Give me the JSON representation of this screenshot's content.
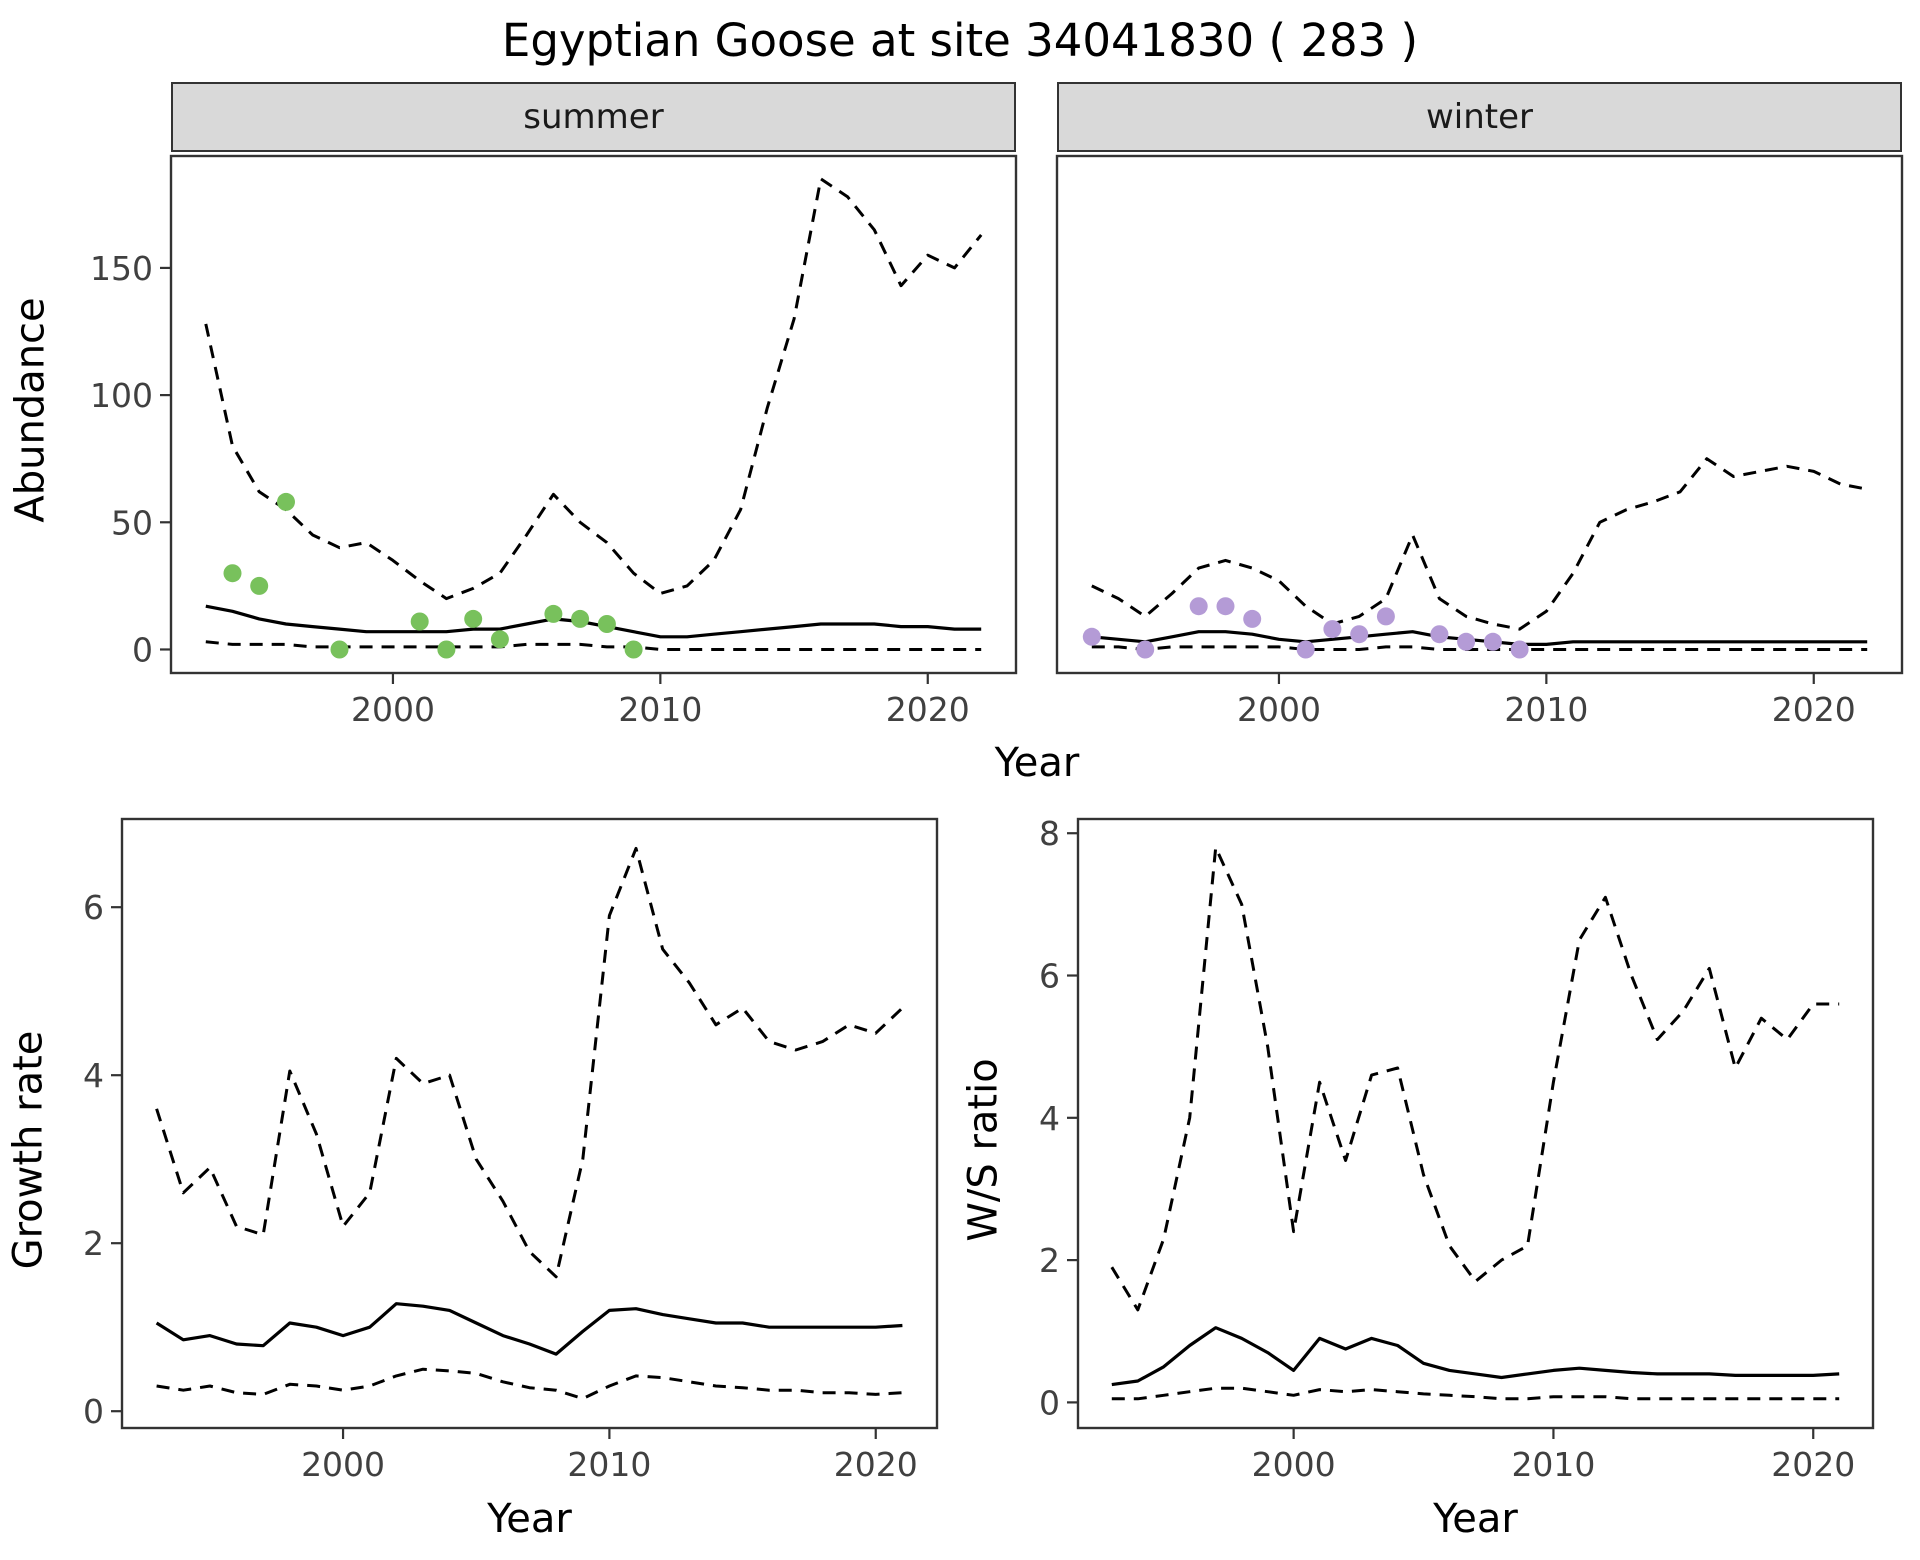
{
  "page": {
    "title": "Egyptian Goose at site 34041830 ( 283 )"
  },
  "labels": {
    "year": "Year",
    "abundance": "Abundance",
    "growth_rate": "Growth rate",
    "ws_ratio": "W/S ratio",
    "summer": "summer",
    "winter": "winter"
  },
  "colors": {
    "summer_points": "#78c15c",
    "winter_points": "#b49bd6",
    "line": "#000000",
    "strip_background": "#d9d9d9"
  },
  "chart_data": [
    {
      "id": "abundance-summer",
      "type": "line",
      "facet_label": "summer",
      "title": "",
      "xlabel": "Year",
      "ylabel": "Abundance",
      "xlim": [
        1991.7,
        2023.3
      ],
      "ylim": [
        -9.25,
        194
      ],
      "xticks": [
        2000,
        2010,
        2020
      ],
      "yticks": [
        0,
        50,
        100,
        150
      ],
      "show_y_labels": true,
      "grid": false,
      "legend": "none",
      "x": [
        1993,
        1994,
        1995,
        1996,
        1997,
        1998,
        1999,
        2000,
        2001,
        2002,
        2003,
        2004,
        2005,
        2006,
        2007,
        2008,
        2009,
        2010,
        2011,
        2012,
        2013,
        2014,
        2015,
        2016,
        2017,
        2018,
        2019,
        2020,
        2021,
        2022
      ],
      "series": [
        {
          "name": "upper-ci",
          "style": "dashed",
          "values": [
            128,
            80,
            62,
            55,
            45,
            40,
            42,
            35,
            27,
            20,
            24,
            30,
            45,
            61,
            50,
            42,
            30,
            22,
            25,
            35,
            55,
            95,
            130,
            185,
            178,
            165,
            143,
            155,
            150,
            163
          ]
        },
        {
          "name": "fitted",
          "style": "solid",
          "values": [
            17,
            15,
            12,
            10,
            9,
            8,
            7,
            7,
            7,
            7,
            8,
            8,
            10,
            12,
            11,
            9,
            7,
            5,
            5,
            6,
            7,
            8,
            9,
            10,
            10,
            10,
            9,
            9,
            8,
            8
          ]
        },
        {
          "name": "lower-ci",
          "style": "dashed",
          "values": [
            3,
            2,
            2,
            2,
            1,
            1,
            1,
            1,
            1,
            1,
            1,
            1,
            2,
            2,
            2,
            1,
            1,
            0,
            0,
            0,
            0,
            0,
            0,
            0,
            0,
            0,
            0,
            0,
            0,
            0
          ]
        }
      ],
      "points": {
        "name": "observed-counts",
        "color": "#78c15c",
        "x": [
          1994,
          1995,
          1996,
          1998,
          2001,
          2002,
          2003,
          2004,
          2006,
          2007,
          2008,
          2009
        ],
        "y": [
          30,
          25,
          58,
          0,
          11,
          0,
          12,
          4,
          14,
          12,
          10,
          0
        ]
      }
    },
    {
      "id": "abundance-winter",
      "type": "line",
      "facet_label": "winter",
      "title": "",
      "xlabel": "Year",
      "ylabel": "Abundance",
      "xlim": [
        1991.7,
        2023.3
      ],
      "ylim": [
        -9.25,
        194
      ],
      "xticks": [
        2000,
        2010,
        2020
      ],
      "yticks": [
        0,
        50,
        100,
        150
      ],
      "show_y_labels": false,
      "grid": false,
      "legend": "none",
      "x": [
        1993,
        1994,
        1995,
        1996,
        1997,
        1998,
        1999,
        2000,
        2001,
        2002,
        2003,
        2004,
        2005,
        2006,
        2007,
        2008,
        2009,
        2010,
        2011,
        2012,
        2013,
        2014,
        2015,
        2016,
        2017,
        2018,
        2019,
        2020,
        2021,
        2022
      ],
      "series": [
        {
          "name": "upper-ci",
          "style": "dashed",
          "values": [
            25,
            20,
            13,
            22,
            32,
            35,
            32,
            27,
            17,
            10,
            13,
            20,
            45,
            20,
            13,
            10,
            8,
            15,
            30,
            50,
            55,
            58,
            62,
            75,
            68,
            70,
            72,
            70,
            65,
            63
          ]
        },
        {
          "name": "fitted",
          "style": "solid",
          "values": [
            5,
            4,
            3,
            5,
            7,
            7,
            6,
            4,
            3,
            4,
            5,
            6,
            7,
            5,
            4,
            3,
            2,
            2,
            3,
            3,
            3,
            3,
            3,
            3,
            3,
            3,
            3,
            3,
            3,
            3
          ]
        },
        {
          "name": "lower-ci",
          "style": "dashed",
          "values": [
            1,
            1,
            0,
            1,
            1,
            1,
            1,
            1,
            0,
            0,
            0,
            1,
            1,
            0,
            0,
            0,
            0,
            0,
            0,
            0,
            0,
            0,
            0,
            0,
            0,
            0,
            0,
            0,
            0,
            0
          ]
        }
      ],
      "points": {
        "name": "observed-counts",
        "color": "#b49bd6",
        "x": [
          1993,
          1995,
          1997,
          1998,
          1999,
          2001,
          2002,
          2003,
          2004,
          2006,
          2007,
          2008,
          2009
        ],
        "y": [
          5,
          0,
          17,
          17,
          12,
          0,
          8,
          6,
          13,
          6,
          3,
          3,
          0
        ]
      }
    },
    {
      "id": "growth-rate",
      "type": "line",
      "facet_label": "",
      "title": "",
      "xlabel": "Year",
      "ylabel": "Growth rate",
      "xlim": [
        1991.7,
        2022.3
      ],
      "ylim": [
        -0.2,
        7.05
      ],
      "xticks": [
        2000,
        2010,
        2020
      ],
      "yticks": [
        0,
        2,
        4,
        6
      ],
      "show_y_labels": true,
      "grid": false,
      "legend": "none",
      "x": [
        1993,
        1994,
        1995,
        1996,
        1997,
        1998,
        1999,
        2000,
        2001,
        2002,
        2003,
        2004,
        2005,
        2006,
        2007,
        2008,
        2009,
        2010,
        2011,
        2012,
        2013,
        2014,
        2015,
        2016,
        2017,
        2018,
        2019,
        2020,
        2021
      ],
      "series": [
        {
          "name": "upper-ci",
          "style": "dashed",
          "values": [
            3.6,
            2.6,
            2.9,
            2.2,
            2.1,
            4.05,
            3.3,
            2.2,
            2.6,
            4.2,
            3.9,
            4.0,
            3.0,
            2.5,
            1.9,
            1.6,
            3.0,
            5.9,
            6.7,
            5.5,
            5.1,
            4.6,
            4.8,
            4.4,
            4.3,
            4.4,
            4.6,
            4.5,
            4.8
          ]
        },
        {
          "name": "fitted",
          "style": "solid",
          "values": [
            1.05,
            0.85,
            0.9,
            0.8,
            0.78,
            1.05,
            1.0,
            0.9,
            1.0,
            1.28,
            1.25,
            1.2,
            1.05,
            0.9,
            0.8,
            0.68,
            0.95,
            1.2,
            1.22,
            1.15,
            1.1,
            1.05,
            1.05,
            1.0,
            1.0,
            1.0,
            1.0,
            1.0,
            1.02
          ]
        },
        {
          "name": "lower-ci",
          "style": "dashed",
          "values": [
            0.3,
            0.25,
            0.3,
            0.22,
            0.2,
            0.32,
            0.3,
            0.25,
            0.3,
            0.42,
            0.5,
            0.48,
            0.45,
            0.35,
            0.28,
            0.25,
            0.15,
            0.3,
            0.42,
            0.4,
            0.35,
            0.3,
            0.28,
            0.25,
            0.25,
            0.22,
            0.22,
            0.2,
            0.22
          ]
        }
      ],
      "points": null
    },
    {
      "id": "ws-ratio",
      "type": "line",
      "facet_label": "",
      "title": "",
      "xlabel": "Year",
      "ylabel": "W/S ratio",
      "xlim": [
        1991.7,
        2022.3
      ],
      "ylim": [
        -0.36,
        8.2
      ],
      "xticks": [
        2000,
        2010,
        2020
      ],
      "yticks": [
        0,
        2,
        4,
        6,
        8
      ],
      "show_y_labels": true,
      "grid": false,
      "legend": "none",
      "x": [
        1993,
        1994,
        1995,
        1996,
        1997,
        1998,
        1999,
        2000,
        2001,
        2002,
        2003,
        2004,
        2005,
        2006,
        2007,
        2008,
        2009,
        2010,
        2011,
        2012,
        2013,
        2014,
        2015,
        2016,
        2017,
        2018,
        2019,
        2020,
        2021
      ],
      "series": [
        {
          "name": "upper-ci",
          "style": "dashed",
          "values": [
            1.9,
            1.3,
            2.3,
            4.0,
            7.8,
            7.0,
            5.0,
            2.4,
            4.5,
            3.4,
            4.6,
            4.7,
            3.2,
            2.2,
            1.7,
            2.0,
            2.2,
            4.5,
            6.5,
            7.1,
            6.0,
            5.1,
            5.5,
            6.1,
            4.7,
            5.4,
            5.1,
            5.6,
            5.6
          ]
        },
        {
          "name": "fitted",
          "style": "solid",
          "values": [
            0.25,
            0.3,
            0.5,
            0.8,
            1.05,
            0.9,
            0.7,
            0.45,
            0.9,
            0.75,
            0.9,
            0.8,
            0.55,
            0.45,
            0.4,
            0.35,
            0.4,
            0.45,
            0.48,
            0.45,
            0.42,
            0.4,
            0.4,
            0.4,
            0.38,
            0.38,
            0.38,
            0.38,
            0.4
          ]
        },
        {
          "name": "lower-ci",
          "style": "dashed",
          "values": [
            0.05,
            0.05,
            0.1,
            0.15,
            0.2,
            0.2,
            0.15,
            0.1,
            0.18,
            0.15,
            0.18,
            0.15,
            0.12,
            0.1,
            0.08,
            0.05,
            0.05,
            0.08,
            0.08,
            0.08,
            0.05,
            0.05,
            0.05,
            0.05,
            0.05,
            0.05,
            0.05,
            0.05,
            0.05
          ]
        }
      ],
      "points": null
    }
  ]
}
